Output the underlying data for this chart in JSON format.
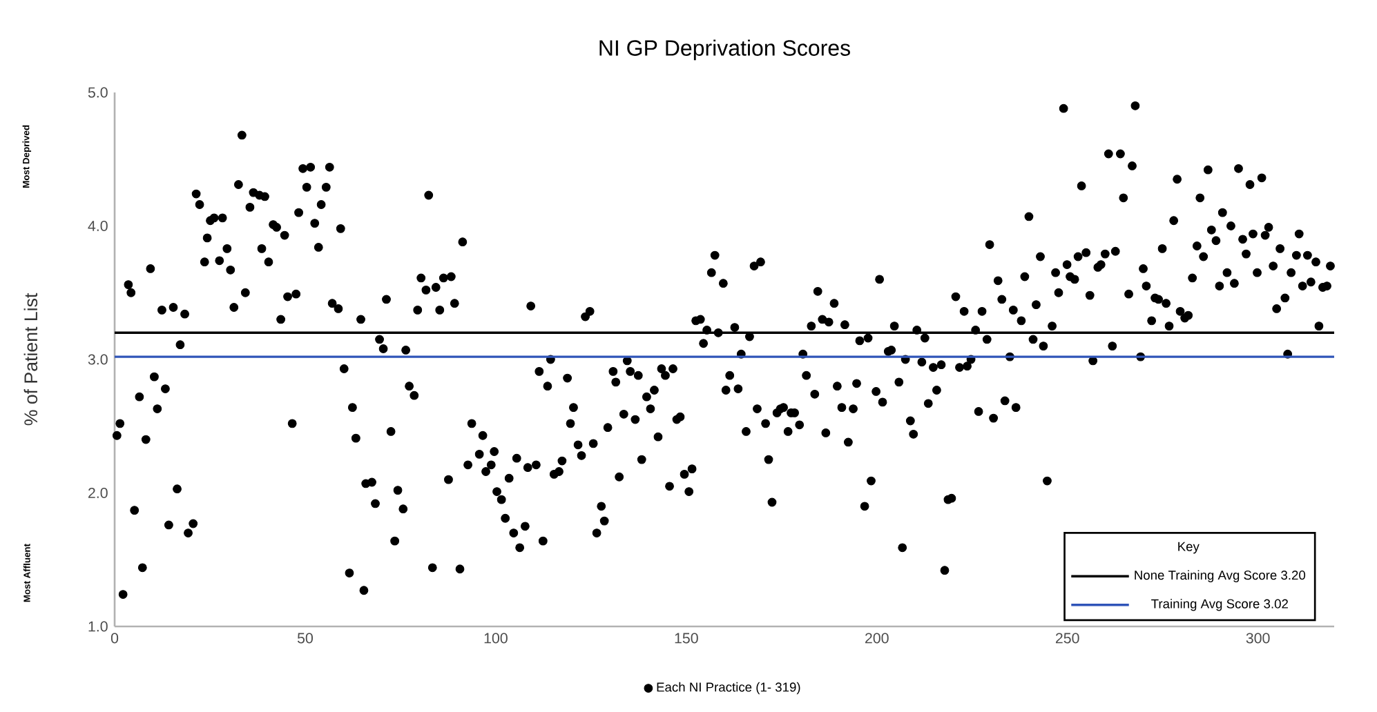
{
  "chart_data": {
    "type": "scatter",
    "title": "NI GP Deprivation Scores",
    "ylabel": "% of Patient List",
    "legend_title": "Key",
    "legend": "bottom",
    "grid": false,
    "annotations": [
      "Most Deprived",
      "Most Affluent"
    ],
    "xlim": [
      0,
      320
    ],
    "xticks": [
      0,
      50,
      100,
      150,
      200,
      250,
      300
    ],
    "ylim": [
      1,
      5
    ],
    "yticks": [
      {
        "value": 1,
        "label": "1.0"
      },
      {
        "value": 2,
        "label": "2.0"
      },
      {
        "value": 3,
        "label": "3.0"
      },
      {
        "value": 4,
        "label": "4.0"
      },
      {
        "value": 5,
        "label": "5.0"
      }
    ],
    "ref_lines": [
      {
        "axis": "y",
        "value": 3.2,
        "label": "None Training Avg Score 3.20",
        "color": "#000000"
      },
      {
        "axis": "y",
        "value": 3.02,
        "label": "Training Avg Score 3.02",
        "color": "#2f54b8"
      }
    ],
    "series": [
      {
        "name": "Each NI Practice (1- 319)",
        "color": "#000000",
        "x": [
          0.6,
          1.4,
          2.2,
          3.6,
          4.3,
          5.2,
          6.5,
          7.3,
          8.2,
          9.4,
          10.4,
          11.2,
          12.4,
          13.3,
          14.2,
          15.4,
          16.4,
          17.2,
          18.4,
          19.3,
          20.6,
          21.4,
          22.3,
          23.6,
          24.3,
          25.1,
          26.1,
          27.5,
          28.3,
          29.5,
          30.4,
          31.3,
          32.5,
          33.4,
          34.3,
          35.5,
          36.4,
          38,
          38.6,
          39.4,
          40.4,
          41.6,
          42.5,
          43.6,
          44.6,
          45.4,
          46.6,
          47.6,
          48.3,
          49.4,
          50.4,
          51.4,
          52.5,
          53.5,
          54.2,
          55.5,
          56.4,
          57.1,
          58.7,
          59.3,
          60.2,
          61.6,
          62.4,
          63.3,
          64.6,
          65.4,
          65.9,
          67.5,
          68.4,
          69.5,
          70.5,
          71.3,
          72.5,
          73.5,
          74.3,
          75.7,
          76.4,
          77.3,
          78.6,
          79.5,
          80.4,
          81.7,
          82.4,
          83.4,
          84.3,
          85.3,
          86.3,
          87.6,
          88.3,
          89.2,
          90.6,
          91.3,
          92.7,
          93.7,
          95.7,
          96.6,
          97.4,
          98.8,
          99.6,
          100.3,
          101.5,
          102.5,
          103.5,
          104.7,
          105.5,
          106.3,
          107.7,
          108.4,
          109.2,
          110.6,
          111.4,
          112.4,
          113.6,
          114.4,
          115.3,
          116.6,
          117.4,
          118.8,
          119.6,
          120.4,
          121.6,
          122.5,
          123.5,
          124.7,
          125.6,
          126.5,
          127.7,
          128.5,
          129.4,
          130.8,
          131.5,
          132.4,
          133.6,
          134.5,
          135.3,
          136.6,
          137.4,
          138.3,
          139.6,
          140.6,
          141.6,
          142.6,
          143.5,
          144.5,
          145.6,
          146.5,
          147.5,
          148.4,
          149.5,
          150.7,
          151.5,
          152.5,
          153.7,
          154.5,
          155.4,
          156.6,
          157.5,
          158.4,
          159.7,
          160.4,
          161.4,
          162.7,
          163.6,
          164.4,
          165.7,
          166.6,
          167.8,
          168.6,
          169.5,
          170.8,
          171.6,
          172.5,
          173.8,
          174.7,
          175.5,
          176.7,
          177.5,
          178.4,
          179.7,
          180.6,
          181.5,
          182.8,
          183.7,
          184.5,
          185.7,
          186.6,
          187.4,
          188.8,
          189.6,
          190.8,
          191.6,
          192.5,
          193.8,
          194.7,
          195.5,
          196.8,
          197.7,
          198.5,
          199.8,
          200.7,
          201.5,
          203,
          203.8,
          204.6,
          205.8,
          206.7,
          207.5,
          208.8,
          209.6,
          210.5,
          211.8,
          212.6,
          213.5,
          214.8,
          215.7,
          216.9,
          217.8,
          218.7,
          219.6,
          220.7,
          221.7,
          222.9,
          223.7,
          224.7,
          225.9,
          226.7,
          227.6,
          228.9,
          229.6,
          230.6,
          231.8,
          232.8,
          233.6,
          234.9,
          235.8,
          236.5,
          237.9,
          238.8,
          239.9,
          241,
          241.8,
          242.9,
          243.7,
          244.7,
          246,
          246.9,
          247.7,
          249,
          249.9,
          250.7,
          251.9,
          252.8,
          253.7,
          254.9,
          255.9,
          256.7,
          258,
          258.8,
          259.9,
          260.8,
          261.8,
          262.6,
          263.9,
          264.7,
          266.1,
          267,
          267.8,
          269.2,
          269.9,
          270.7,
          272.1,
          273,
          273.9,
          274.9,
          275.9,
          276.7,
          277.9,
          278.8,
          279.6,
          280.8,
          281.7,
          282.8,
          284,
          284.8,
          285.7,
          286.9,
          287.8,
          289,
          289.9,
          290.7,
          291.9,
          292.9,
          293.8,
          294.9,
          296,
          296.9,
          297.9,
          298.7,
          299.8,
          301,
          301.9,
          302.8,
          304,
          304.9,
          305.8,
          307.1,
          307.8,
          308.7,
          310.1,
          310.8,
          311.7,
          313,
          313.9,
          315.2,
          316,
          317,
          318.1,
          319
        ],
        "values": [
          2.43,
          2.52,
          1.24,
          3.56,
          3.5,
          1.87,
          2.72,
          1.44,
          2.4,
          3.68,
          2.87,
          2.63,
          3.37,
          2.78,
          1.76,
          3.39,
          2.03,
          3.11,
          3.34,
          1.7,
          1.77,
          4.24,
          4.16,
          3.73,
          3.91,
          4.04,
          4.06,
          3.74,
          4.06,
          3.83,
          3.67,
          3.39,
          4.31,
          4.68,
          3.5,
          4.14,
          4.25,
          4.23,
          3.83,
          4.22,
          3.73,
          4.01,
          3.99,
          3.3,
          3.93,
          3.47,
          2.52,
          3.49,
          4.1,
          4.43,
          4.29,
          4.44,
          4.02,
          3.84,
          4.16,
          4.29,
          4.44,
          3.42,
          3.38,
          3.98,
          2.93,
          1.4,
          2.64,
          2.41,
          3.3,
          1.27,
          2.07,
          2.08,
          1.92,
          3.15,
          3.08,
          3.45,
          2.46,
          1.64,
          2.02,
          1.88,
          3.07,
          2.8,
          2.73,
          3.37,
          3.61,
          3.52,
          4.23,
          1.44,
          3.54,
          3.37,
          3.61,
          2.1,
          3.62,
          3.42,
          1.43,
          3.88,
          2.21,
          2.52,
          2.29,
          2.43,
          2.16,
          2.21,
          2.31,
          2.01,
          1.95,
          1.81,
          2.11,
          1.7,
          2.26,
          1.59,
          1.75,
          2.19,
          3.4,
          2.21,
          2.91,
          1.64,
          2.8,
          3.0,
          2.14,
          2.16,
          2.24,
          2.86,
          2.52,
          2.64,
          2.36,
          2.28,
          3.32,
          3.36,
          2.37,
          1.7,
          1.9,
          1.79,
          2.49,
          2.91,
          2.83,
          2.12,
          2.59,
          2.99,
          2.91,
          2.55,
          2.88,
          2.25,
          2.72,
          2.63,
          2.77,
          2.42,
          2.93,
          2.88,
          2.05,
          2.93,
          2.55,
          2.57,
          2.14,
          2.01,
          2.18,
          3.29,
          3.3,
          3.12,
          3.22,
          3.65,
          3.78,
          3.2,
          3.57,
          2.77,
          2.88,
          3.24,
          2.78,
          3.04,
          2.46,
          3.17,
          3.7,
          2.63,
          3.73,
          2.52,
          2.25,
          1.93,
          2.6,
          2.63,
          2.64,
          2.46,
          2.6,
          2.6,
          2.51,
          3.04,
          2.88,
          3.25,
          2.74,
          3.51,
          3.3,
          2.45,
          3.28,
          3.42,
          2.8,
          2.64,
          3.26,
          2.38,
          2.63,
          2.82,
          3.14,
          1.9,
          3.16,
          2.09,
          2.76,
          3.6,
          2.68,
          3.06,
          3.07,
          3.25,
          2.83,
          1.59,
          3.0,
          2.54,
          2.44,
          3.22,
          2.98,
          3.16,
          2.67,
          2.94,
          2.77,
          2.96,
          1.42,
          1.95,
          1.96,
          3.47,
          2.94,
          3.36,
          2.95,
          3.0,
          3.22,
          2.61,
          3.36,
          3.15,
          3.86,
          2.56,
          3.59,
          3.45,
          2.69,
          3.02,
          3.37,
          2.64,
          3.29,
          3.62,
          4.07,
          3.15,
          3.41,
          3.77,
          3.1,
          2.09,
          3.25,
          3.65,
          3.5,
          4.88,
          3.71,
          3.62,
          3.6,
          3.77,
          4.3,
          3.8,
          3.48,
          2.99,
          3.69,
          3.71,
          3.79,
          4.54,
          3.1,
          3.81,
          4.54,
          4.21,
          3.49,
          4.45,
          4.9,
          3.02,
          3.68,
          3.55,
          3.29,
          3.46,
          3.45,
          3.83,
          3.42,
          3.25,
          4.04,
          4.35,
          3.36,
          3.31,
          3.33,
          3.61,
          3.85,
          4.21,
          3.77,
          4.42,
          3.97,
          3.89,
          3.55,
          4.1,
          3.65,
          4.0,
          3.57,
          4.43,
          3.9,
          3.79,
          4.31,
          3.94,
          3.65,
          4.36,
          3.93,
          3.99,
          3.7,
          3.38,
          3.83,
          3.46,
          3.04,
          3.65,
          3.78,
          3.94,
          3.55,
          3.78,
          3.58,
          3.73,
          3.25,
          3.54,
          3.55,
          3.7
        ]
      }
    ]
  }
}
